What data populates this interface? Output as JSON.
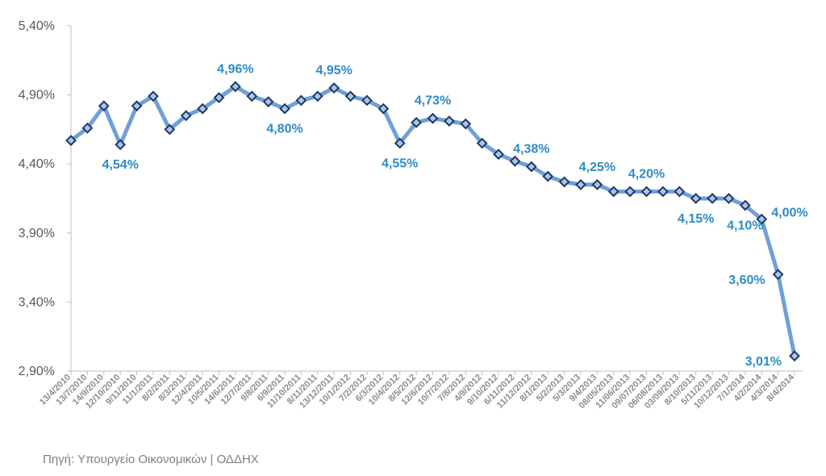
{
  "chart_data": {
    "type": "line",
    "ylim": [
      2.9,
      5.4
    ],
    "yticks": [
      "5,40%",
      "4,90%",
      "4,40%",
      "3,90%",
      "3,40%",
      "2,90%"
    ],
    "ytick_values": [
      5.4,
      4.9,
      4.4,
      3.9,
      3.4,
      2.9
    ],
    "grid": false,
    "legend": "none",
    "line_color": "#6fa0d8",
    "marker_color": "#1f3864",
    "label_color": "#2e8bc8",
    "x": [
      "13/4/2010",
      "13/7/2010",
      "14/9/2010",
      "12/10/2010",
      "9/11/2010",
      "11/1/2011",
      "8/2/2011",
      "8/3/2011",
      "12/4/2011",
      "10/5/2011",
      "14/6/2011",
      "12/7/2011",
      "9/8/2011",
      "6/9/2011",
      "11/10/2011",
      "8/11/2011",
      "13/12/2011",
      "10/1/2012",
      "7/2/2012",
      "6/3/2012",
      "10/4/2012",
      "8/5/2012",
      "12/6/2012",
      "10/7/2012",
      "7/8/2012",
      "4/9/2012",
      "9/10/2012",
      "6/11/2012",
      "11/12/2012",
      "8/1/2013",
      "5/2/2013",
      "5/3/2013",
      "9/4/2013",
      "08/05/2013",
      "11/06/2013",
      "09/07/2013",
      "06/08/2013",
      "03/09/2013",
      "8/10/2013",
      "5/11/2013",
      "10/12/2013",
      "7/1/2014",
      "4/2/2014",
      "4/3/2014",
      "8/4/2014"
    ],
    "values": [
      4.57,
      4.66,
      4.82,
      4.54,
      4.82,
      4.89,
      4.65,
      4.75,
      4.8,
      4.88,
      4.96,
      4.89,
      4.85,
      4.8,
      4.86,
      4.89,
      4.95,
      4.89,
      4.86,
      4.8,
      4.55,
      4.7,
      4.73,
      4.71,
      4.69,
      4.55,
      4.47,
      4.42,
      4.38,
      4.31,
      4.27,
      4.25,
      4.25,
      4.2,
      4.2,
      4.2,
      4.2,
      4.2,
      4.15,
      4.15,
      4.15,
      4.1,
      4.0,
      3.6,
      3.01
    ],
    "data_labels": [
      {
        "index": 3,
        "text": "4,54%",
        "pos": "below"
      },
      {
        "index": 10,
        "text": "4,96%",
        "pos": "above"
      },
      {
        "index": 13,
        "text": "4,80%",
        "pos": "below"
      },
      {
        "index": 16,
        "text": "4,95%",
        "pos": "above"
      },
      {
        "index": 20,
        "text": "4,55%",
        "pos": "below"
      },
      {
        "index": 22,
        "text": "4,73%",
        "pos": "above"
      },
      {
        "index": 28,
        "text": "4,38%",
        "pos": "above"
      },
      {
        "index": 32,
        "text": "4,25%",
        "pos": "above"
      },
      {
        "index": 35,
        "text": "4,20%",
        "pos": "above"
      },
      {
        "index": 38,
        "text": "4,15%",
        "pos": "below"
      },
      {
        "index": 41,
        "text": "4,10%",
        "pos": "below"
      },
      {
        "index": 42,
        "text": "4,00%",
        "pos": "right"
      },
      {
        "index": 43,
        "text": "3,60%",
        "pos": "left"
      },
      {
        "index": 44,
        "text": "3,01%",
        "pos": "left"
      }
    ]
  },
  "source_text": "Πηγή: Υπουργείο Οικονομικών | ΟΔΔΗΧ"
}
